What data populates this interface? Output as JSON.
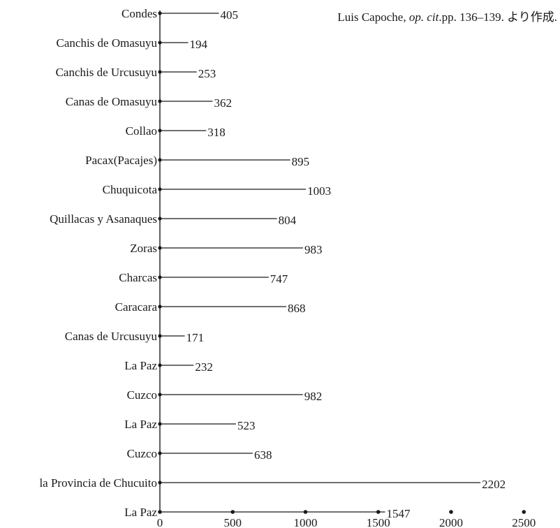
{
  "source_note": {
    "author": "Luis Capoche, ",
    "op_cit": "op. cit",
    "rest": ".pp. 136–139. より作成."
  },
  "chart_data": {
    "type": "bar",
    "orientation": "horizontal",
    "categories": [
      "Condes",
      "Canchis de Omasuyu",
      "Canchis de Urcusuyu",
      "Canas de Omasuyu",
      "Collao",
      "Pacax(Pacajes)",
      "Chuquicota",
      "Quillacas y Asanaques",
      "Zoras",
      "Charcas",
      "Caracara",
      "Canas de Urcusuyu",
      "La Paz",
      "Cuzco",
      "La Paz",
      "Cuzco",
      "la Provincia de Chucuito",
      "La Paz"
    ],
    "values": [
      405,
      194,
      253,
      362,
      318,
      895,
      1003,
      804,
      983,
      747,
      868,
      171,
      232,
      982,
      523,
      638,
      2202,
      1547
    ],
    "xlim": [
      0,
      2500
    ],
    "xticks": [
      0,
      500,
      1000,
      1500,
      2000,
      2500
    ],
    "title": "",
    "xlabel": "",
    "ylabel": "",
    "grid": false,
    "color": "#1a1a1a"
  }
}
